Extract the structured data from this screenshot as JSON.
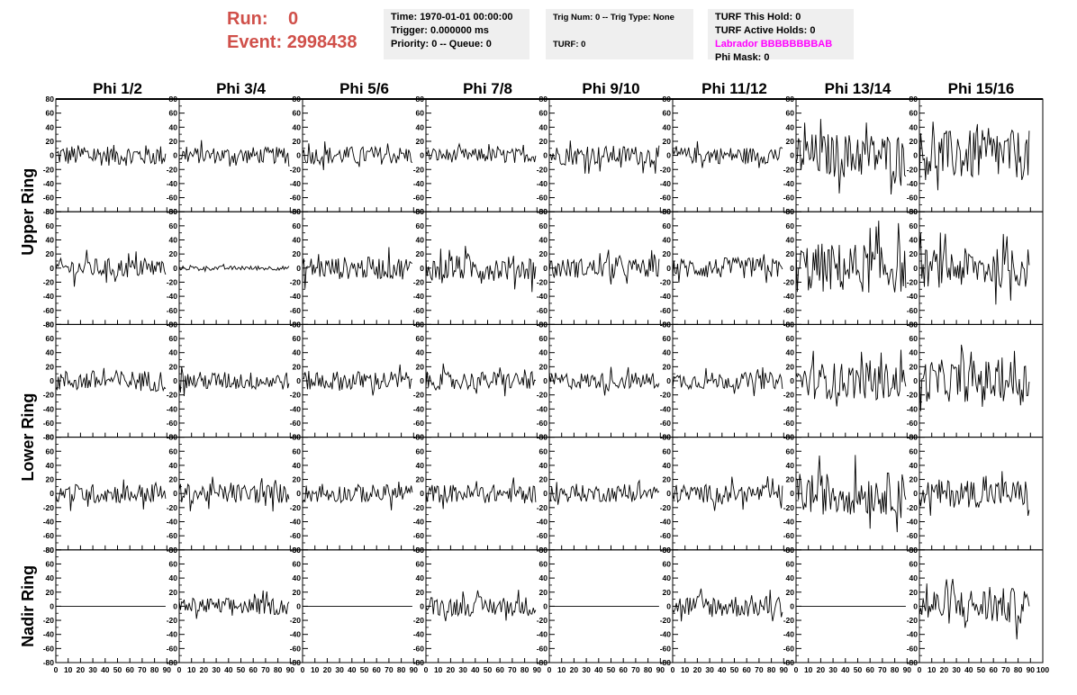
{
  "header": {
    "run_label": "Run:",
    "run_value": "0",
    "event_label": "Event:",
    "event_value": "2998438",
    "time_line": "Time: 1970-01-01 00:00:00",
    "trigger_line": "Trigger: 0.000000 ms",
    "priority_line": "Priority: 0 -- Queue: 0",
    "trig_num_line": "Trig Num: 0 -- Trig Type: None",
    "turf_line": "TURF: 0",
    "turf_hold_line": "TURF This Hold: 0",
    "turf_active_line": "TURF Active Holds: 0",
    "labrador_line": "Labrador BBBBBBBBAB",
    "phi_mask_line": "Phi Mask: 0"
  },
  "colors": {
    "run_text": "#d0504a",
    "labrador_text": "#ff00ff",
    "info_box_bg": "#efefef",
    "trace": "#000000"
  },
  "chart_data": {
    "type": "line",
    "layout": "grid",
    "columns": [
      "Phi 1/2",
      "Phi 3/4",
      "Phi 5/6",
      "Phi 7/8",
      "Phi 9/10",
      "Phi 11/12",
      "Phi 13/14",
      "Phi 15/16"
    ],
    "row_groups": [
      {
        "label": "Upper Ring",
        "rows": [
          0,
          1
        ]
      },
      {
        "label": "Lower Ring",
        "rows": [
          2,
          3
        ]
      },
      {
        "label": "Nadir Ring",
        "rows": [
          4
        ]
      }
    ],
    "xlim": [
      0,
      100
    ],
    "ylim": [
      -80,
      80
    ],
    "x_ticks": [
      0,
      10,
      20,
      30,
      40,
      50,
      60,
      70,
      80,
      90,
      100
    ],
    "x_tick_labels": [
      "0",
      "10",
      "20",
      "30",
      "40",
      "50",
      "60",
      "70",
      "80",
      "90",
      "100"
    ],
    "y_ticks": [
      -80,
      -60,
      -40,
      -20,
      0,
      20,
      40,
      60,
      80
    ],
    "y_tick_labels": [
      "-80",
      "-60",
      "-40",
      "-20",
      "0",
      "20",
      "40",
      "60",
      "80"
    ],
    "samples_per_trace": 90,
    "trace_amplitude": [
      [
        15,
        12,
        13,
        10,
        14,
        12,
        32,
        36
      ],
      [
        14,
        3,
        16,
        18,
        14,
        15,
        36,
        28
      ],
      [
        15,
        13,
        14,
        13,
        12,
        12,
        26,
        30
      ],
      [
        14,
        14,
        13,
        13,
        12,
        13,
        30,
        20
      ],
      [
        0,
        12,
        0,
        14,
        0,
        16,
        0,
        26
      ]
    ],
    "grid": false,
    "legend": "none"
  }
}
